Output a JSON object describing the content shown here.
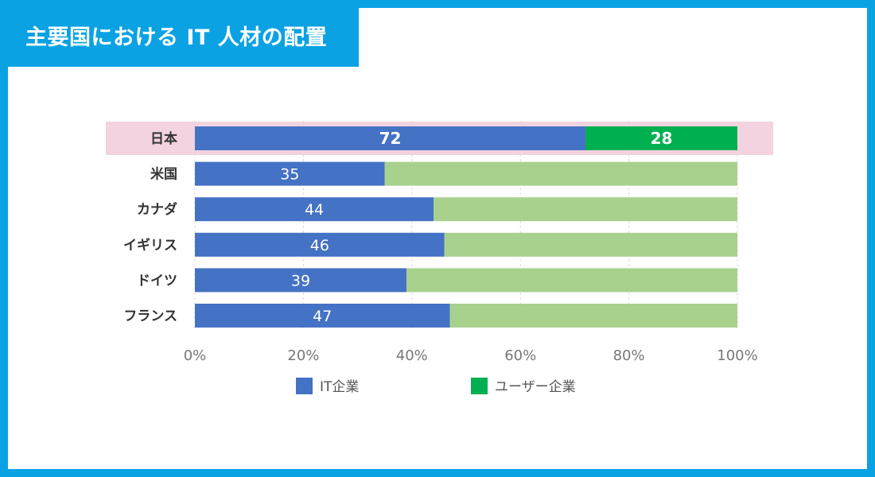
{
  "header": {
    "title": "主要国における IT 人材の配置"
  },
  "colors": {
    "it": "#4472c4",
    "user_highlight": "#00b050",
    "user": "#a9d18e",
    "highlight_band": "#f2d3df",
    "grid": "#d9d9d9"
  },
  "chart_data": {
    "type": "bar",
    "orientation": "horizontal",
    "stacked": true,
    "percent_stacked": true,
    "title": "",
    "categories": [
      "日本",
      "米国",
      "カナダ",
      "イギリス",
      "ドイツ",
      "フランス"
    ],
    "series": [
      {
        "name": "IT企業",
        "values": [
          72,
          35,
          44,
          46,
          39,
          47
        ]
      },
      {
        "name": "ユーザー企業",
        "values": [
          28,
          65,
          56,
          54,
          61,
          53
        ]
      }
    ],
    "shown_labels": {
      "IT企業": [
        "72",
        "35",
        "44",
        "46",
        "39",
        "47"
      ],
      "ユーザー企業": [
        "28"
      ]
    },
    "highlighted_category": "日本",
    "xlim": [
      0,
      100
    ],
    "xticks": [
      "0%",
      "20%",
      "40%",
      "60%",
      "80%",
      "100%"
    ],
    "legend": "bottom",
    "grid": true
  }
}
